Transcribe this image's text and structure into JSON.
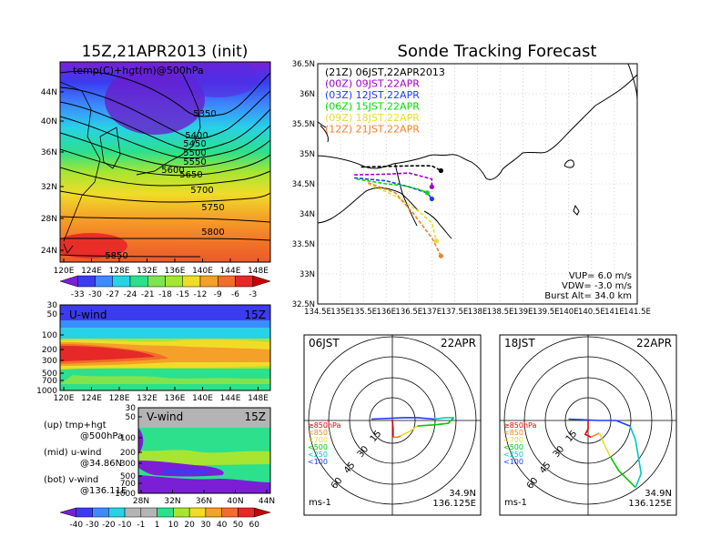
{
  "left_title": "15Z,21APR2013 (init)",
  "right_title": "Sonde Tracking Forecast",
  "map_panel": {
    "label": "temp(C)+hgt(m)@500hPa",
    "lat_ticks": [
      "44N",
      "40N",
      "36N",
      "32N",
      "28N",
      "24N"
    ],
    "lon_ticks": [
      "120E",
      "124E",
      "128E",
      "132E",
      "136E",
      "140E",
      "144E",
      "148E"
    ],
    "contour_labels": [
      "5350",
      "5400",
      "5450",
      "5500",
      "5550",
      "5600",
      "5650",
      "5700",
      "5750",
      "5800",
      "5850"
    ],
    "colorbar_ticks": [
      "-33",
      "-30",
      "-27",
      "-24",
      "-21",
      "-18",
      "-15",
      "-12",
      "-9",
      "-6",
      "-3"
    ]
  },
  "uwind_panel": {
    "label": "U-wind",
    "time": "15Z",
    "y_ticks": [
      "30",
      "50",
      "100",
      "200",
      "300",
      "500",
      "700",
      "1000"
    ],
    "x_ticks": [
      "120E",
      "124E",
      "128E",
      "132E",
      "136E",
      "140E",
      "144E",
      "148E"
    ]
  },
  "vwind_panel": {
    "label": "V-wind",
    "time": "15Z",
    "y_ticks": [
      "30",
      "50",
      "100",
      "200",
      "300",
      "500",
      "700",
      "1000"
    ],
    "x_ticks": [
      "28N",
      "32N",
      "36N",
      "40N",
      "44N"
    ],
    "colorbar_ticks": [
      "-40",
      "-30",
      "-20",
      "-10",
      "-1",
      "1",
      "10",
      "20",
      "30",
      "40",
      "50",
      "60"
    ]
  },
  "legend_notes": [
    {
      "line1": "(up) tmp+hgt",
      "line2": "@500hPa"
    },
    {
      "line1": "(mid) u-wind",
      "line2": "@34.86N"
    },
    {
      "line1": "(bot) v-wind",
      "line2": "@136.11E"
    }
  ],
  "track_map": {
    "lat_ticks": [
      "36.5N",
      "36N",
      "35.5N",
      "35N",
      "34.5N",
      "34N",
      "33.5N",
      "33N",
      "32.5N"
    ],
    "lon_ticks": [
      "134.5E",
      "135E",
      "135.5E",
      "136E",
      "136.5E",
      "137E",
      "137.5E",
      "138E",
      "138.5E",
      "139E",
      "139.5E",
      "140E",
      "140.5E",
      "141E",
      "141.5E"
    ],
    "legend": [
      {
        "text": "(21Z)  06JST,22APR2013",
        "color": "#000000"
      },
      {
        "text": "(00Z)  09JST,22APR",
        "color": "#a000c8"
      },
      {
        "text": "(03Z)  12JST,22APR",
        "color": "#1e3cff"
      },
      {
        "text": "(06Z)  15JST,22APR",
        "color": "#00dc00"
      },
      {
        "text": "(09Z)  18JST,22APR",
        "color": "#e6dc32"
      },
      {
        "text": "(12Z)  21JST,22APR",
        "color": "#f08228"
      }
    ],
    "params": [
      "VUP=  6.0  m/s",
      "VDW=  -3.0  m/s",
      "Burst Alt=  34.0  km"
    ]
  },
  "hodo_left": {
    "time": "06JST",
    "date": "22APR",
    "ring_labels": [
      "15",
      "30",
      "45",
      "60"
    ],
    "levels": [
      {
        "text": "≥850hPa",
        "color": "#e60000"
      },
      {
        "text": "<850",
        "color": "#f08228"
      },
      {
        "text": "<700",
        "color": "#e6dc32"
      },
      {
        "text": "<500",
        "color": "#00c800"
      },
      {
        "text": "<250",
        "color": "#00c8c8"
      },
      {
        "text": "<100",
        "color": "#1e3cff"
      }
    ],
    "units": "ms-1",
    "lat": "34.9N",
    "lon": "136.125E"
  },
  "hodo_right": {
    "time": "18JST",
    "date": "22APR",
    "ring_labels": [
      "15",
      "30",
      "45",
      "60"
    ],
    "levels": [
      {
        "text": "≥850hPa",
        "color": "#e60000"
      },
      {
        "text": "<850",
        "color": "#f08228"
      },
      {
        "text": "<700",
        "color": "#e6dc32"
      },
      {
        "text": "<500",
        "color": "#00c800"
      },
      {
        "text": "<250",
        "color": "#00c8c8"
      },
      {
        "text": "<100",
        "color": "#1e3cff"
      }
    ],
    "units": "ms-1",
    "lat": "34.9N",
    "lon": "136.125E"
  }
}
